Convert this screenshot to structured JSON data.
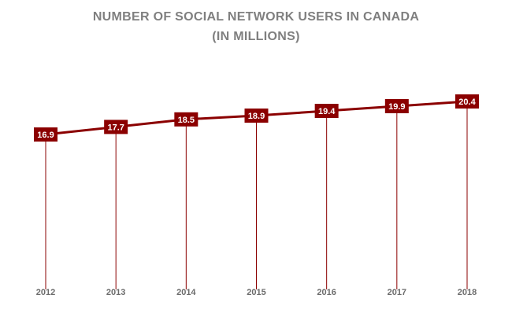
{
  "chart_data": {
    "type": "line",
    "title": "NUMBER OF SOCIAL NETWORK USERS IN CANADA",
    "subtitle": "(IN MILLIONS)",
    "categories": [
      "2012",
      "2013",
      "2014",
      "2015",
      "2016",
      "2017",
      "2018"
    ],
    "values": [
      16.9,
      17.7,
      18.5,
      18.9,
      19.4,
      19.9,
      20.4
    ],
    "value_labels": [
      "16.9",
      "17.7",
      "18.5",
      "18.9",
      "19.4",
      "19.9",
      "20.4"
    ],
    "xlabel": "",
    "ylabel": "",
    "grid": false,
    "legend": "none",
    "drop_lines": true,
    "colors": {
      "line": "#8b0000",
      "label_box": "#8b0000",
      "label_text": "#ffffff",
      "axis_text": "#6b6b6b",
      "title": "#7f7f7f"
    }
  }
}
